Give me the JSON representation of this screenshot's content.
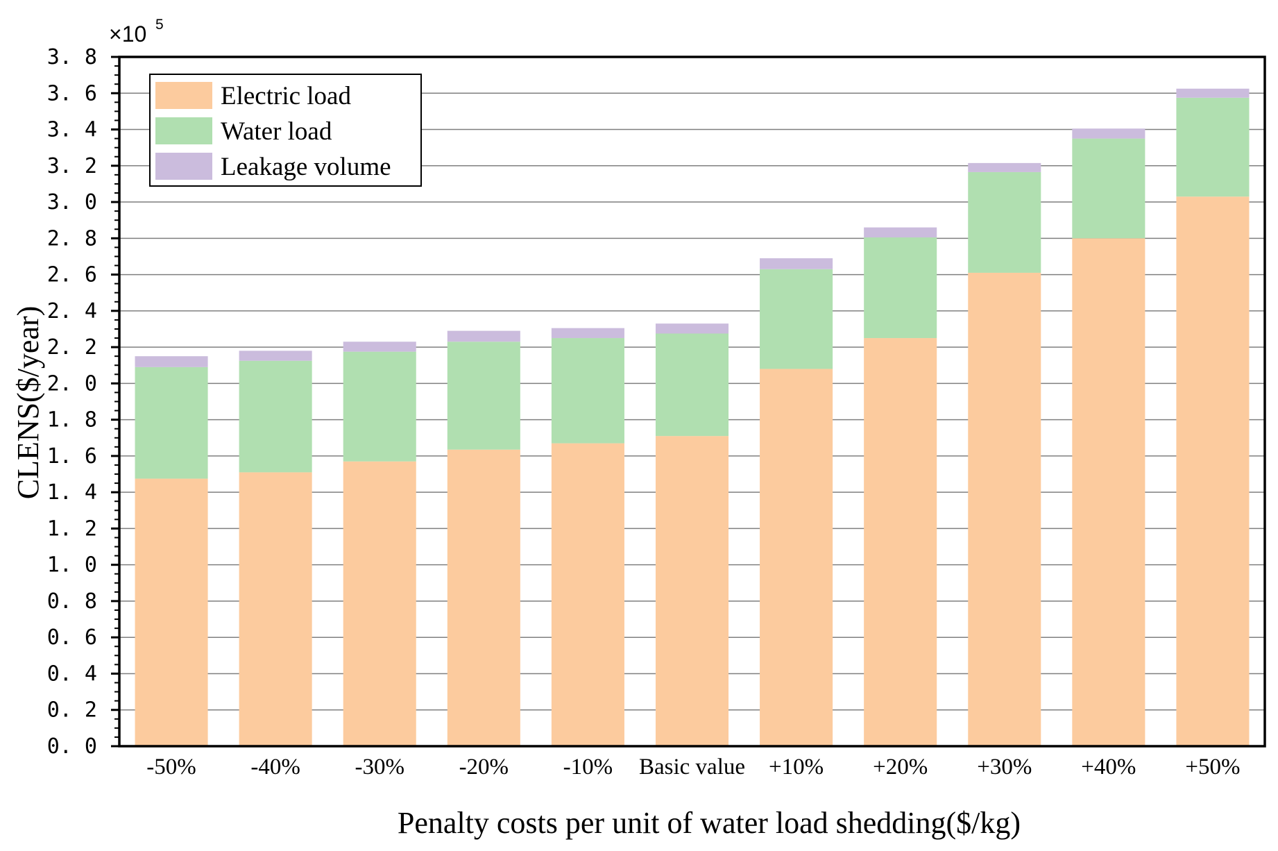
{
  "chart_data": {
    "type": "bar",
    "stacked": true,
    "xlabel": "Penalty costs per unit of water load shedding($/kg)",
    "ylabel": "CLENS($/year)",
    "multiplier": {
      "prefix": "×10",
      "exponent": "5"
    },
    "ylim": [
      0,
      3.8
    ],
    "yticks": [
      "0. 0",
      "0. 2",
      "0. 4",
      "0. 6",
      "0. 8",
      "1. 0",
      "1. 2",
      "1. 4",
      "1. 6",
      "1. 8",
      "2. 0",
      "2. 2",
      "2. 4",
      "2. 6",
      "2. 8",
      "3. 0",
      "3. 2",
      "3. 4",
      "3. 6",
      "3. 8"
    ],
    "grid": true,
    "legend_position": "top-left",
    "categories": [
      "-50%",
      "-40%",
      "-30%",
      "-20%",
      "-10%",
      "Basic value",
      "+10%",
      "+20%",
      "+30%",
      "+40%",
      "+50%"
    ],
    "series": [
      {
        "name": "Electric load",
        "color": "#fccb9e",
        "values": [
          1.475,
          1.51,
          1.57,
          1.635,
          1.67,
          1.71,
          2.08,
          2.25,
          2.61,
          2.8,
          3.03
        ]
      },
      {
        "name": "Water load",
        "color": "#b0dfb0",
        "values": [
          0.615,
          0.615,
          0.605,
          0.595,
          0.58,
          0.565,
          0.55,
          0.555,
          0.555,
          0.55,
          0.545
        ]
      },
      {
        "name": "Leakage volume",
        "color": "#cbbcdd",
        "values": [
          0.06,
          0.055,
          0.055,
          0.06,
          0.055,
          0.055,
          0.06,
          0.055,
          0.05,
          0.055,
          0.05
        ]
      }
    ]
  }
}
